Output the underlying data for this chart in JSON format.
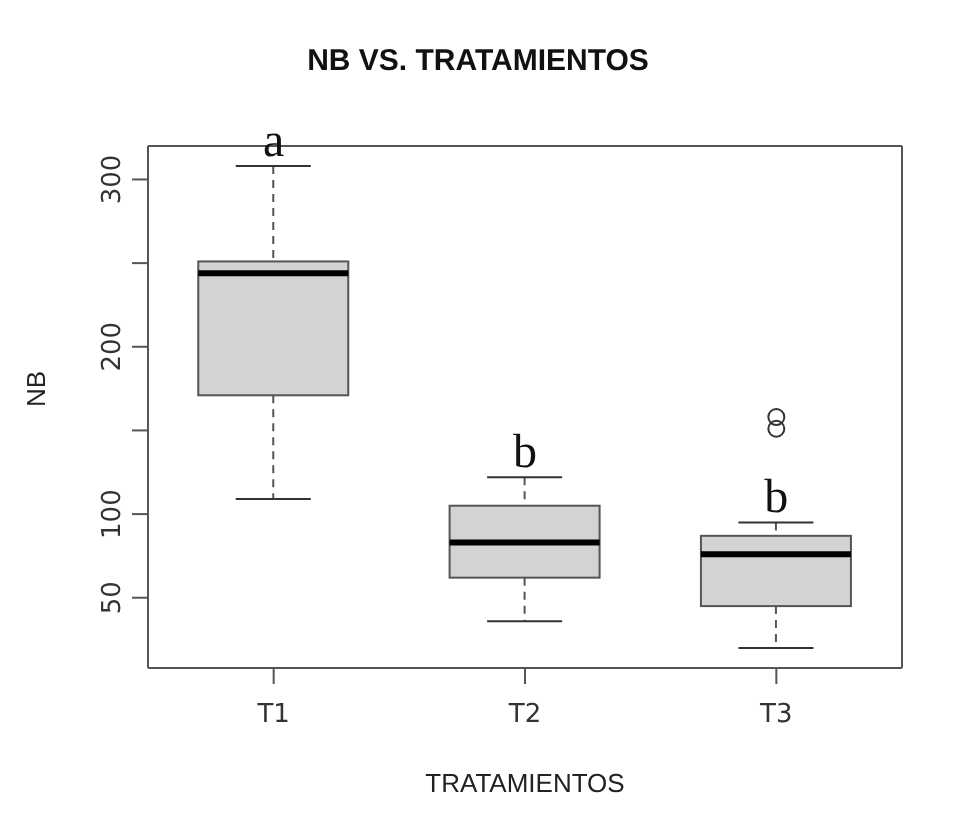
{
  "chart_data": {
    "type": "box",
    "title": "NB VS. TRATAMIENTOS",
    "xlabel": "TRATAMIENTOS",
    "ylabel": "NB",
    "categories": [
      "T1",
      "T2",
      "T3"
    ],
    "boxes": [
      {
        "low": 109,
        "q1": 171,
        "median": 244,
        "q3": 251,
        "high": 308
      },
      {
        "low": 36,
        "q1": 62,
        "median": 83,
        "q3": 105,
        "high": 122
      },
      {
        "low": 20,
        "q1": 45,
        "median": 76,
        "q3": 87,
        "high": 95,
        "outliers": [
          151,
          158
        ]
      }
    ],
    "color": "#d3d3d3",
    "ylim": [
      8,
      320
    ],
    "yticks": [
      50,
      100,
      {
        "value": 150,
        "label": null
      },
      200,
      {
        "value": 250,
        "label": null
      },
      300
    ],
    "annotations": [
      {
        "text": "a",
        "x": "T1",
        "y": 308
      },
      {
        "text": "b",
        "x": "T2",
        "y": 122
      },
      {
        "text": "b",
        "x": "T3",
        "y": 95
      }
    ],
    "grid": false,
    "legend": false
  }
}
